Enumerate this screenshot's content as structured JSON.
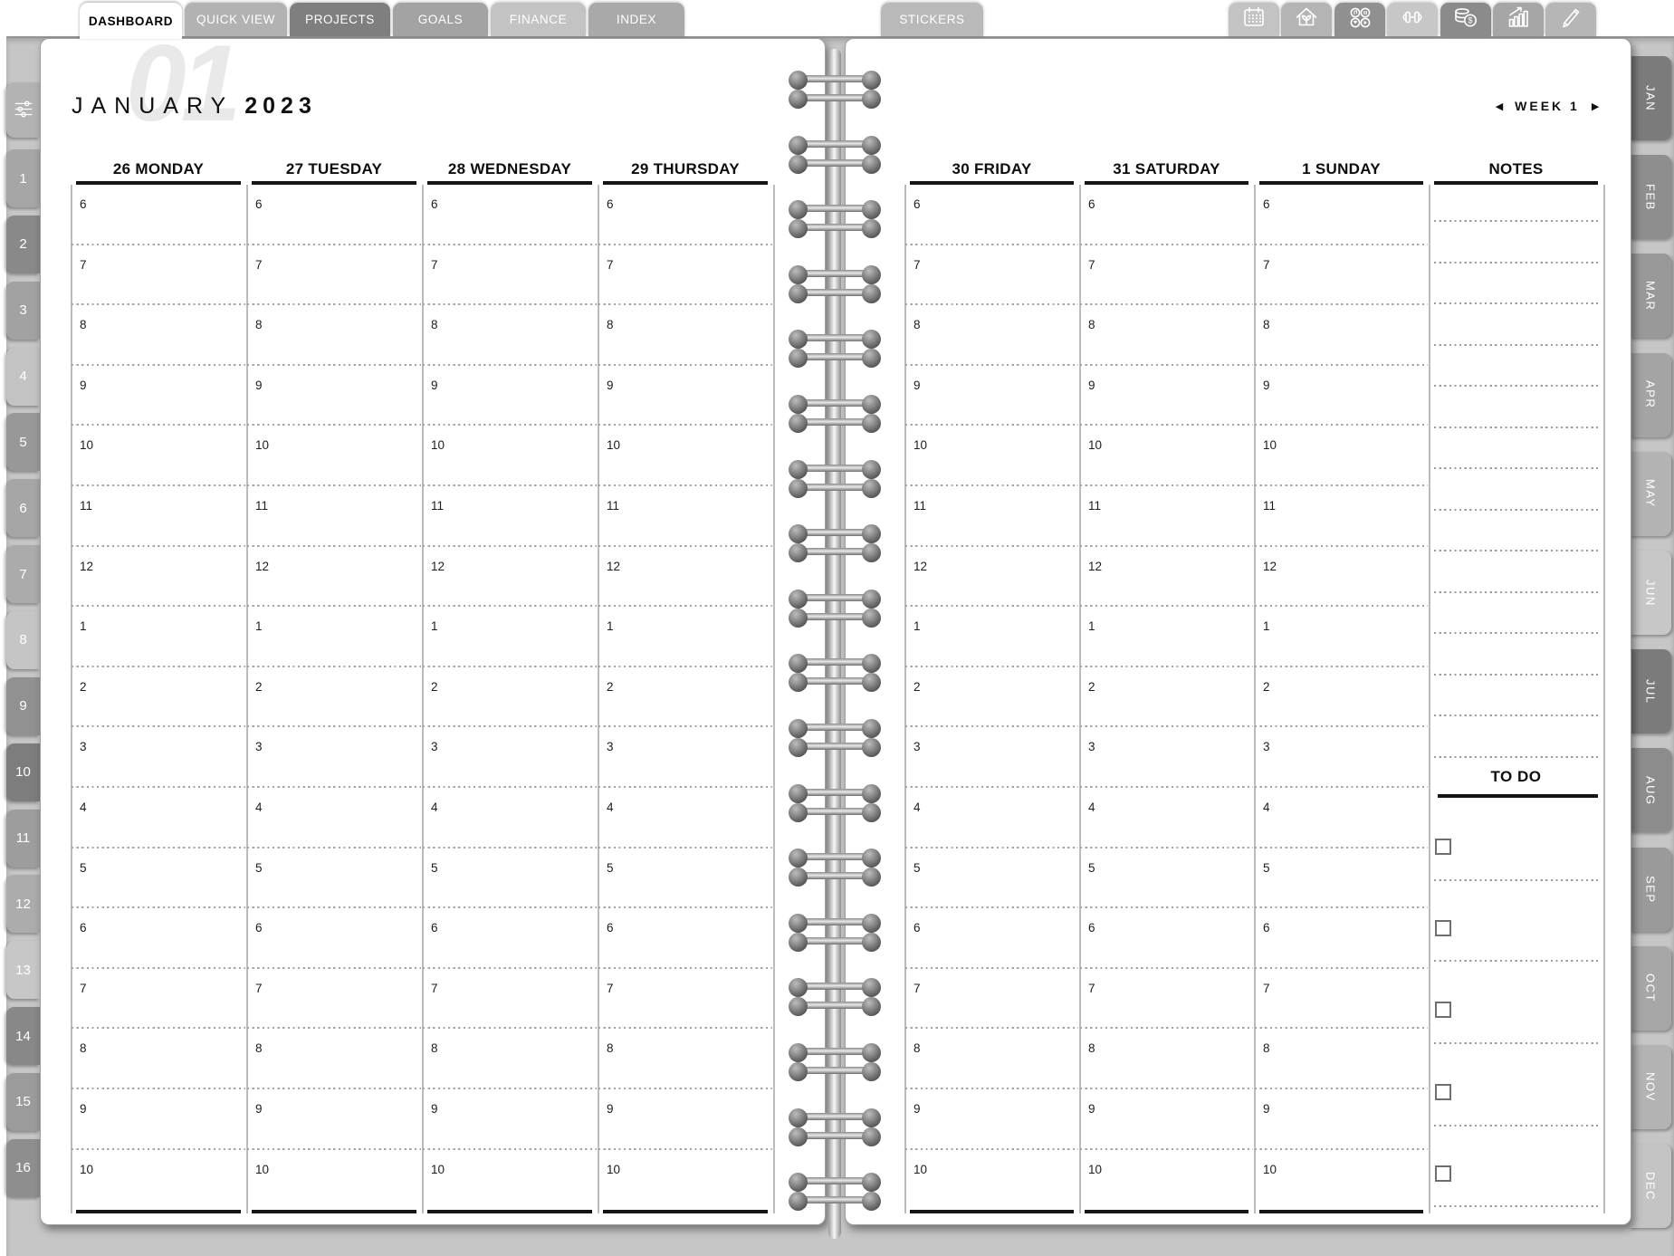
{
  "top_tab_bar": {
    "tabs": [
      {
        "label": "DASHBOARD",
        "active": true,
        "color": "#ffffff"
      },
      {
        "label": "QUICK VIEW",
        "active": false,
        "color": "#b2b2b2"
      },
      {
        "label": "PROJECTS",
        "active": false,
        "color": "#7f7f7f"
      },
      {
        "label": "GOALS",
        "active": false,
        "color": "#a3a3a3"
      },
      {
        "label": "FINANCE",
        "active": false,
        "color": "#c3c3c3"
      },
      {
        "label": "INDEX",
        "active": false,
        "color": "#a9a9a9"
      }
    ],
    "stickers_tab": {
      "label": "STICKERS",
      "color": "#b9b9b9"
    },
    "icon_buttons": [
      {
        "icon": "calendar-icon",
        "color": "#c3c3c3"
      },
      {
        "icon": "home-icon",
        "color": "#b4b4b4"
      },
      {
        "icon": "apps-icon",
        "color": "#909090"
      },
      {
        "icon": "fitness-icon",
        "color": "#c7c7c7"
      },
      {
        "icon": "money-icon",
        "color": "#8b8b8b"
      },
      {
        "icon": "stats-icon",
        "color": "#a6a6a6"
      },
      {
        "icon": "edit-icon",
        "color": "#b6b6b6"
      }
    ]
  },
  "header": {
    "month": "JANUARY",
    "year": "2023",
    "watermark": "01"
  },
  "week_nav": {
    "prev": "◀",
    "label": "WEEK 1",
    "next": "▶"
  },
  "planner": {
    "left_days": [
      "26 MONDAY",
      "27 TUESDAY",
      "28 WEDNESDAY",
      "29 THURSDAY"
    ],
    "right_days": [
      "30 FRIDAY",
      "31 SATURDAY",
      "1 SUNDAY"
    ],
    "time_slots": [
      "6",
      "7",
      "8",
      "9",
      "10",
      "11",
      "12",
      "1",
      "2",
      "3",
      "4",
      "5",
      "6",
      "7",
      "8",
      "9",
      "10"
    ],
    "notes": {
      "title": "NOTES",
      "ruled_line_count": 14
    },
    "todo": {
      "title": "TO DO",
      "checkbox_count": 5
    }
  },
  "left_tab_strip": {
    "settings_icon": "sliders-icon",
    "settings_color": "#b3b3b3",
    "tabs": [
      {
        "label": "1",
        "color": "#a6a6a6"
      },
      {
        "label": "2",
        "color": "#898989"
      },
      {
        "label": "3",
        "color": "#a2a2a2"
      },
      {
        "label": "4",
        "color": "#c3c3c3"
      },
      {
        "label": "5",
        "color": "#989898"
      },
      {
        "label": "6",
        "color": "#a6a6a6"
      },
      {
        "label": "7",
        "color": "#ababab"
      },
      {
        "label": "8",
        "color": "#c5c5c5"
      },
      {
        "label": "9",
        "color": "#919191"
      },
      {
        "label": "10",
        "color": "#7d7d7d"
      },
      {
        "label": "11",
        "color": "#9d9d9d"
      },
      {
        "label": "12",
        "color": "#acacac"
      },
      {
        "label": "13",
        "color": "#c7c7c7"
      },
      {
        "label": "14",
        "color": "#888888"
      },
      {
        "label": "15",
        "color": "#9b9b9b"
      },
      {
        "label": "16",
        "color": "#8e8e8e"
      }
    ]
  },
  "month_tab_strip": {
    "tabs": [
      {
        "label": "JAN",
        "color": "#7b7b7b"
      },
      {
        "label": "FEB",
        "color": "#8e8e8e"
      },
      {
        "label": "MAR",
        "color": "#999999"
      },
      {
        "label": "APR",
        "color": "#a4a4a4"
      },
      {
        "label": "MAY",
        "color": "#b3b3b3"
      },
      {
        "label": "JUN",
        "color": "#c7c7c7"
      },
      {
        "label": "JUL",
        "color": "#7b7b7b"
      },
      {
        "label": "AUG",
        "color": "#8c8c8c"
      },
      {
        "label": "SEP",
        "color": "#9a9a9a"
      },
      {
        "label": "OCT",
        "color": "#a7a7a7"
      },
      {
        "label": "NOV",
        "color": "#b3b3b3"
      },
      {
        "label": "DEC",
        "color": "#c4c4c4"
      }
    ]
  },
  "colors": {
    "desk": "#c6c6c6",
    "page": "#ffffff",
    "ink": "#111111"
  }
}
